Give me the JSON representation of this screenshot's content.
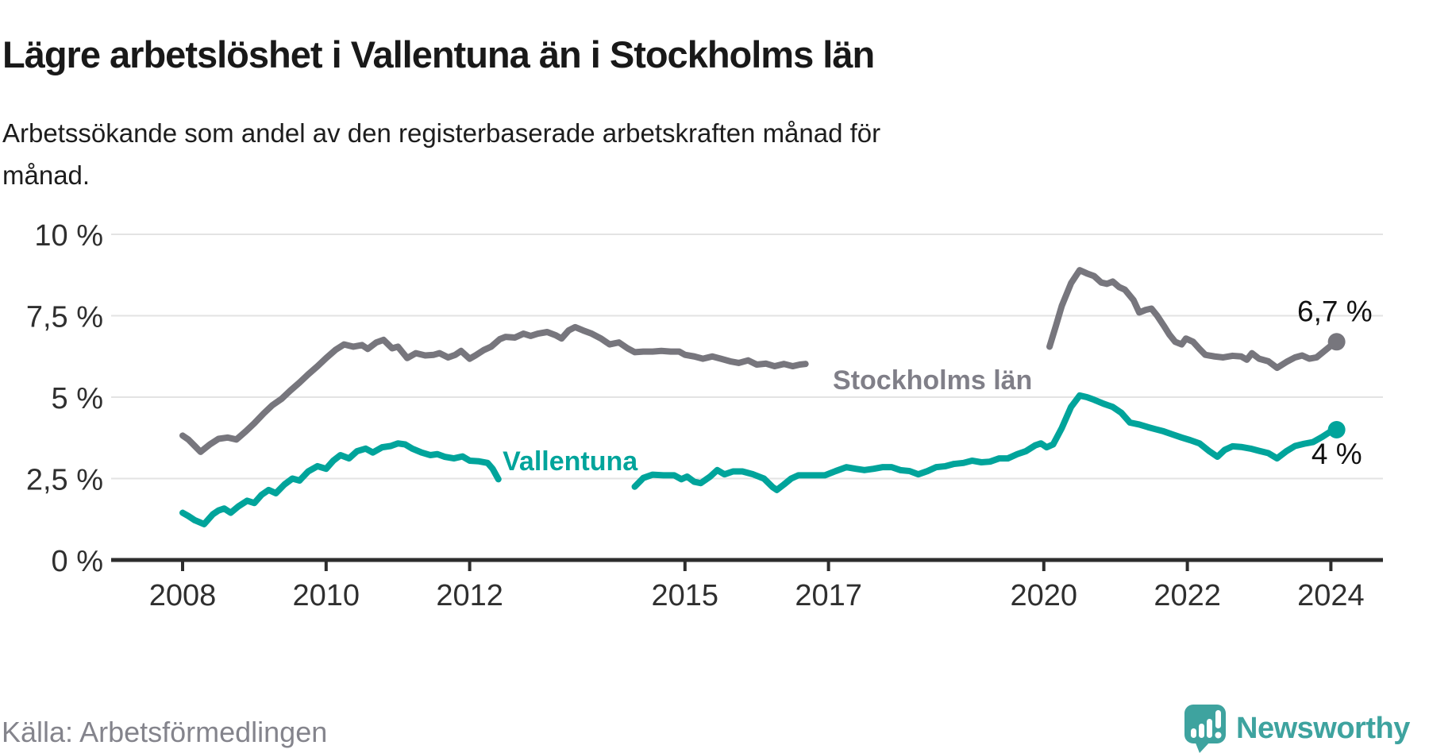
{
  "header": {
    "title": "Lägre arbetslöshet i Vallentuna än i Stockholms län",
    "subtitle": "Arbetssökande som andel av den registerbaserade arbetskraften månad för\nmånad."
  },
  "footer": {
    "source": "Källa: Arbetsförmedlingen",
    "brand": "Newsworthy"
  },
  "icons": {
    "brand_icon": "newsworthy-speech-bubble-bar-chart-icon"
  },
  "colors": {
    "stockholm_line": "#77767d",
    "stockholm_label": "#807f88",
    "vallentuna_line": "#00a49b",
    "vallentuna_label": "#00a49b",
    "gridline": "#e3e3e3",
    "axis": "#2d2d2d",
    "tick_text": "#2f2f2f",
    "end_label_text": "#111111",
    "brand_teal": "#3ea39f",
    "source_gray": "#84848c"
  },
  "chart_data": {
    "type": "line",
    "title": "Lägre arbetslöshet i Vallentuna än i Stockholms län",
    "xlabel": "",
    "ylabel": "Arbetssökande som andel av den registerbaserade arbetskraften",
    "grid": true,
    "legend_position": "inline",
    "ylim": [
      0,
      10
    ],
    "x_ticks": [
      2008,
      2010,
      2012,
      2015,
      2017,
      2020,
      2022,
      2024
    ],
    "y_ticks": [
      {
        "value": 10,
        "label": "10 %"
      },
      {
        "value": 7.5,
        "label": "7,5 %"
      },
      {
        "value": 5,
        "label": "5 %"
      },
      {
        "value": 2.5,
        "label": "2,5 %"
      },
      {
        "value": 0,
        "label": "0 %"
      }
    ],
    "series": [
      {
        "name": "Stockholms län",
        "color": "#77767d",
        "label_color": "#807f88",
        "end_label": "6,7 %",
        "end_value": 6.7,
        "label_anchor": {
          "year": 2018.45,
          "value": 5.24
        },
        "segments": [
          [
            [
              2008.0,
              3.82
            ],
            [
              2008.08,
              3.7
            ],
            [
              2008.17,
              3.5
            ],
            [
              2008.25,
              3.32
            ],
            [
              2008.38,
              3.55
            ],
            [
              2008.5,
              3.72
            ],
            [
              2008.63,
              3.76
            ],
            [
              2008.75,
              3.7
            ],
            [
              2008.88,
              3.95
            ],
            [
              2009.0,
              4.2
            ],
            [
              2009.13,
              4.5
            ],
            [
              2009.25,
              4.75
            ],
            [
              2009.38,
              4.95
            ],
            [
              2009.5,
              5.2
            ],
            [
              2009.63,
              5.45
            ],
            [
              2009.75,
              5.7
            ],
            [
              2009.88,
              5.95
            ],
            [
              2010.0,
              6.2
            ],
            [
              2010.13,
              6.45
            ],
            [
              2010.25,
              6.62
            ],
            [
              2010.38,
              6.55
            ],
            [
              2010.5,
              6.6
            ],
            [
              2010.58,
              6.48
            ],
            [
              2010.7,
              6.68
            ],
            [
              2010.8,
              6.76
            ],
            [
              2010.92,
              6.5
            ],
            [
              2011.0,
              6.55
            ],
            [
              2011.13,
              6.2
            ],
            [
              2011.25,
              6.35
            ],
            [
              2011.38,
              6.28
            ],
            [
              2011.5,
              6.3
            ],
            [
              2011.58,
              6.35
            ],
            [
              2011.7,
              6.22
            ],
            [
              2011.8,
              6.3
            ],
            [
              2011.88,
              6.42
            ],
            [
              2012.0,
              6.18
            ],
            [
              2012.08,
              6.28
            ],
            [
              2012.2,
              6.45
            ],
            [
              2012.3,
              6.55
            ],
            [
              2012.42,
              6.78
            ],
            [
              2012.5,
              6.85
            ],
            [
              2012.63,
              6.83
            ],
            [
              2012.75,
              6.95
            ],
            [
              2012.85,
              6.88
            ],
            [
              2012.95,
              6.95
            ],
            [
              2013.08,
              7.0
            ],
            [
              2013.2,
              6.9
            ],
            [
              2013.28,
              6.8
            ],
            [
              2013.38,
              7.05
            ],
            [
              2013.47,
              7.15
            ],
            [
              2013.58,
              7.05
            ],
            [
              2013.7,
              6.95
            ],
            [
              2013.83,
              6.8
            ],
            [
              2013.95,
              6.62
            ],
            [
              2014.08,
              6.68
            ],
            [
              2014.2,
              6.5
            ],
            [
              2014.3,
              6.38
            ],
            [
              2014.42,
              6.4
            ],
            [
              2014.55,
              6.4
            ],
            [
              2014.67,
              6.42
            ],
            [
              2014.8,
              6.4
            ],
            [
              2014.92,
              6.4
            ],
            [
              2015.0,
              6.3
            ],
            [
              2015.13,
              6.25
            ],
            [
              2015.25,
              6.18
            ],
            [
              2015.38,
              6.25
            ],
            [
              2015.5,
              6.18
            ],
            [
              2015.63,
              6.1
            ],
            [
              2015.75,
              6.05
            ],
            [
              2015.88,
              6.13
            ],
            [
              2016.0,
              6.0
            ],
            [
              2016.13,
              6.03
            ],
            [
              2016.25,
              5.95
            ],
            [
              2016.38,
              6.02
            ],
            [
              2016.5,
              5.95
            ],
            [
              2016.6,
              6.0
            ],
            [
              2016.68,
              6.02
            ]
          ],
          [
            [
              2020.08,
              6.55
            ],
            [
              2020.17,
              7.2
            ],
            [
              2020.25,
              7.8
            ],
            [
              2020.38,
              8.5
            ],
            [
              2020.5,
              8.9
            ],
            [
              2020.6,
              8.8
            ],
            [
              2020.7,
              8.72
            ],
            [
              2020.8,
              8.52
            ],
            [
              2020.88,
              8.48
            ],
            [
              2020.96,
              8.55
            ],
            [
              2021.05,
              8.38
            ],
            [
              2021.13,
              8.3
            ],
            [
              2021.25,
              7.98
            ],
            [
              2021.33,
              7.6
            ],
            [
              2021.42,
              7.68
            ],
            [
              2021.5,
              7.72
            ],
            [
              2021.58,
              7.5
            ],
            [
              2021.67,
              7.2
            ],
            [
              2021.75,
              6.92
            ],
            [
              2021.83,
              6.7
            ],
            [
              2021.92,
              6.62
            ],
            [
              2021.98,
              6.8
            ],
            [
              2022.08,
              6.7
            ],
            [
              2022.17,
              6.48
            ],
            [
              2022.25,
              6.3
            ],
            [
              2022.38,
              6.25
            ],
            [
              2022.5,
              6.22
            ],
            [
              2022.63,
              6.27
            ],
            [
              2022.75,
              6.25
            ],
            [
              2022.83,
              6.15
            ],
            [
              2022.9,
              6.35
            ],
            [
              2023.0,
              6.18
            ],
            [
              2023.13,
              6.1
            ],
            [
              2023.25,
              5.9
            ],
            [
              2023.38,
              6.08
            ],
            [
              2023.5,
              6.22
            ],
            [
              2023.6,
              6.28
            ],
            [
              2023.7,
              6.18
            ],
            [
              2023.8,
              6.22
            ],
            [
              2023.9,
              6.4
            ],
            [
              2024.0,
              6.58
            ],
            [
              2024.08,
              6.7
            ]
          ]
        ]
      },
      {
        "name": "Vallentuna",
        "color": "#00a49b",
        "label_color": "#00a49b",
        "end_label": "4 %",
        "end_value": 4.0,
        "label_anchor": {
          "year": 2013.4,
          "value": 2.76
        },
        "segments": [
          [
            [
              2008.0,
              1.45
            ],
            [
              2008.08,
              1.35
            ],
            [
              2008.17,
              1.22
            ],
            [
              2008.3,
              1.1
            ],
            [
              2008.42,
              1.4
            ],
            [
              2008.5,
              1.52
            ],
            [
              2008.58,
              1.58
            ],
            [
              2008.67,
              1.45
            ],
            [
              2008.78,
              1.65
            ],
            [
              2008.9,
              1.82
            ],
            [
              2009.0,
              1.75
            ],
            [
              2009.1,
              2.0
            ],
            [
              2009.2,
              2.15
            ],
            [
              2009.3,
              2.05
            ],
            [
              2009.42,
              2.32
            ],
            [
              2009.53,
              2.5
            ],
            [
              2009.63,
              2.44
            ],
            [
              2009.75,
              2.72
            ],
            [
              2009.88,
              2.88
            ],
            [
              2010.0,
              2.8
            ],
            [
              2010.1,
              3.05
            ],
            [
              2010.2,
              3.22
            ],
            [
              2010.32,
              3.12
            ],
            [
              2010.43,
              3.34
            ],
            [
              2010.55,
              3.42
            ],
            [
              2010.65,
              3.3
            ],
            [
              2010.78,
              3.46
            ],
            [
              2010.9,
              3.5
            ],
            [
              2011.0,
              3.58
            ],
            [
              2011.1,
              3.55
            ],
            [
              2011.2,
              3.42
            ],
            [
              2011.33,
              3.3
            ],
            [
              2011.45,
              3.22
            ],
            [
              2011.55,
              3.25
            ],
            [
              2011.65,
              3.17
            ],
            [
              2011.78,
              3.12
            ],
            [
              2011.9,
              3.18
            ],
            [
              2012.0,
              3.05
            ],
            [
              2012.13,
              3.03
            ],
            [
              2012.25,
              2.98
            ],
            [
              2012.32,
              2.8
            ],
            [
              2012.4,
              2.48
            ]
          ],
          [
            [
              2014.3,
              2.25
            ],
            [
              2014.42,
              2.52
            ],
            [
              2014.55,
              2.62
            ],
            [
              2014.7,
              2.6
            ],
            [
              2014.85,
              2.6
            ],
            [
              2014.95,
              2.48
            ],
            [
              2015.03,
              2.56
            ],
            [
              2015.13,
              2.4
            ],
            [
              2015.22,
              2.36
            ],
            [
              2015.35,
              2.56
            ],
            [
              2015.45,
              2.76
            ],
            [
              2015.55,
              2.63
            ],
            [
              2015.67,
              2.72
            ],
            [
              2015.8,
              2.72
            ],
            [
              2015.95,
              2.63
            ],
            [
              2016.1,
              2.5
            ],
            [
              2016.22,
              2.24
            ],
            [
              2016.28,
              2.15
            ],
            [
              2016.38,
              2.32
            ],
            [
              2016.48,
              2.5
            ],
            [
              2016.58,
              2.6
            ],
            [
              2016.75,
              2.6
            ],
            [
              2016.95,
              2.6
            ],
            [
              2017.1,
              2.73
            ],
            [
              2017.25,
              2.85
            ],
            [
              2017.38,
              2.8
            ],
            [
              2017.5,
              2.76
            ],
            [
              2017.63,
              2.8
            ],
            [
              2017.75,
              2.85
            ],
            [
              2017.88,
              2.85
            ],
            [
              2018.0,
              2.76
            ],
            [
              2018.13,
              2.73
            ],
            [
              2018.25,
              2.63
            ],
            [
              2018.38,
              2.73
            ],
            [
              2018.5,
              2.85
            ],
            [
              2018.63,
              2.88
            ],
            [
              2018.75,
              2.95
            ],
            [
              2018.88,
              2.98
            ],
            [
              2019.0,
              3.05
            ],
            [
              2019.13,
              3.0
            ],
            [
              2019.25,
              3.02
            ],
            [
              2019.38,
              3.12
            ],
            [
              2019.5,
              3.12
            ],
            [
              2019.63,
              3.25
            ],
            [
              2019.75,
              3.34
            ],
            [
              2019.88,
              3.52
            ],
            [
              2019.96,
              3.58
            ],
            [
              2020.04,
              3.46
            ],
            [
              2020.13,
              3.55
            ],
            [
              2020.25,
              4.05
            ],
            [
              2020.38,
              4.7
            ],
            [
              2020.5,
              5.05
            ],
            [
              2020.6,
              5.0
            ],
            [
              2020.7,
              4.92
            ],
            [
              2020.83,
              4.8
            ],
            [
              2020.96,
              4.7
            ],
            [
              2021.08,
              4.52
            ],
            [
              2021.2,
              4.22
            ],
            [
              2021.33,
              4.16
            ],
            [
              2021.45,
              4.08
            ],
            [
              2021.55,
              4.02
            ],
            [
              2021.67,
              3.95
            ],
            [
              2021.8,
              3.85
            ],
            [
              2021.92,
              3.76
            ],
            [
              2022.04,
              3.68
            ],
            [
              2022.17,
              3.58
            ],
            [
              2022.3,
              3.35
            ],
            [
              2022.42,
              3.17
            ],
            [
              2022.52,
              3.38
            ],
            [
              2022.63,
              3.49
            ],
            [
              2022.75,
              3.47
            ],
            [
              2022.88,
              3.42
            ],
            [
              2023.0,
              3.35
            ],
            [
              2023.13,
              3.28
            ],
            [
              2023.25,
              3.12
            ],
            [
              2023.38,
              3.34
            ],
            [
              2023.5,
              3.5
            ],
            [
              2023.63,
              3.57
            ],
            [
              2023.75,
              3.62
            ],
            [
              2023.88,
              3.78
            ],
            [
              2024.0,
              3.95
            ],
            [
              2024.08,
              4.0
            ]
          ]
        ]
      }
    ]
  }
}
